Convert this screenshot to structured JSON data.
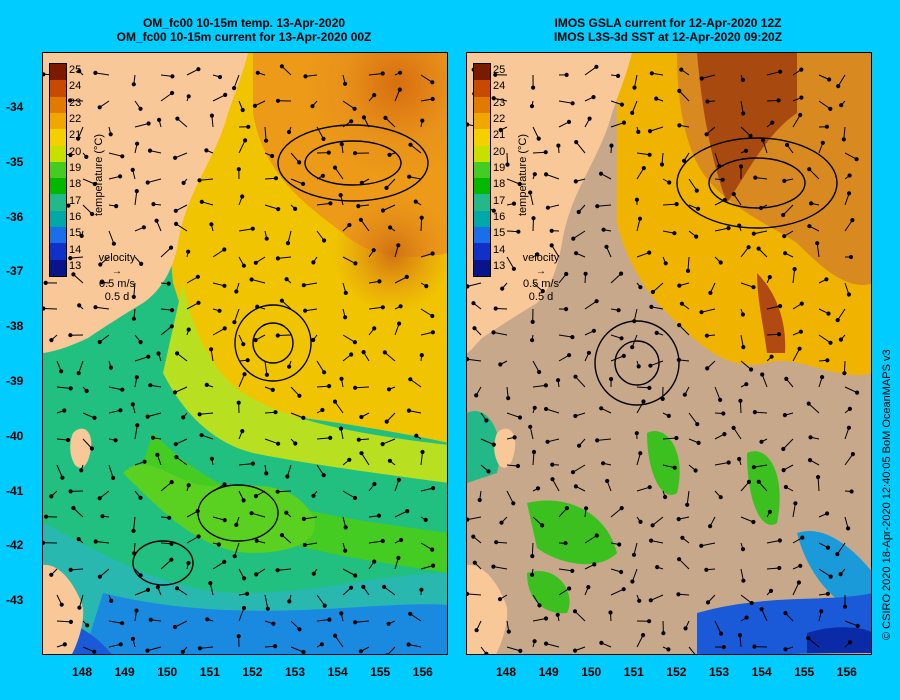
{
  "left_panel": {
    "title_line1": "OM_fc00 10-15m temp. 13-Apr-2020",
    "title_line2": "OM_fc00 10-15m current for 13-Apr-2020 00Z",
    "colorbar_label": "temperature (°C)",
    "velocity_title": "velocity",
    "velocity_scale": "0.5 m/s",
    "velocity_time": "0.5 d"
  },
  "right_panel": {
    "title_line1": "IMOS GSLA current for 12-Apr-2020 12Z",
    "title_line2": "IMOS L3S-3d SST at 12-Apr-2020 09:20Z",
    "colorbar_label": "temperature (°C)",
    "velocity_title": "velocity",
    "velocity_scale": "0.5 m/s",
    "velocity_time": "0.5 d"
  },
  "colorbar_ticks": [
    "25",
    "24",
    "23",
    "22",
    "21",
    "20",
    "19",
    "18",
    "17",
    "16",
    "15",
    "14",
    "13"
  ],
  "colorbar_colors": [
    "#7a1a00",
    "#c84a00",
    "#e07a00",
    "#f0a800",
    "#f5d000",
    "#c8e000",
    "#44cc22",
    "#00b800",
    "#22b888",
    "#00a8a8",
    "#1a6ee8",
    "#1030c8",
    "#0a148a"
  ],
  "lat_ticks": [
    "-34",
    "-35",
    "-36",
    "-37",
    "-38",
    "-39",
    "-40",
    "-41",
    "-42",
    "-43"
  ],
  "lon_ticks": [
    "148",
    "149",
    "150",
    "151",
    "152",
    "153",
    "154",
    "155",
    "156"
  ],
  "credit": "© CSIRO 2020   18-Apr-2020 12:40:05 BoM OceanMAPS v3",
  "colors": {
    "background": "#00ccff",
    "land": "#f8c898",
    "no_data": "#c8a88a"
  }
}
